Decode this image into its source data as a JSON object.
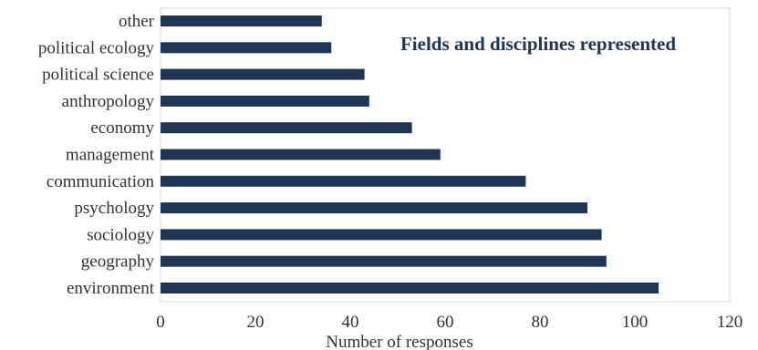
{
  "chart_data": {
    "type": "bar",
    "orientation": "horizontal",
    "title": "Fields and disciplines represented",
    "xlabel": "Number of responses",
    "ylabel": "",
    "categories": [
      "environment",
      "geography",
      "sociology",
      "psychology",
      "communication",
      "management",
      "economy",
      "anthropology",
      "political science",
      "political ecology",
      "other"
    ],
    "values": [
      105,
      94,
      93,
      90,
      77,
      59,
      53,
      44,
      43,
      36,
      34
    ],
    "xlim": [
      0,
      120
    ],
    "xticks": [
      0,
      20,
      40,
      60,
      80,
      100,
      120
    ],
    "grid": false,
    "legend": "none",
    "bar_color": "#1f3556"
  }
}
